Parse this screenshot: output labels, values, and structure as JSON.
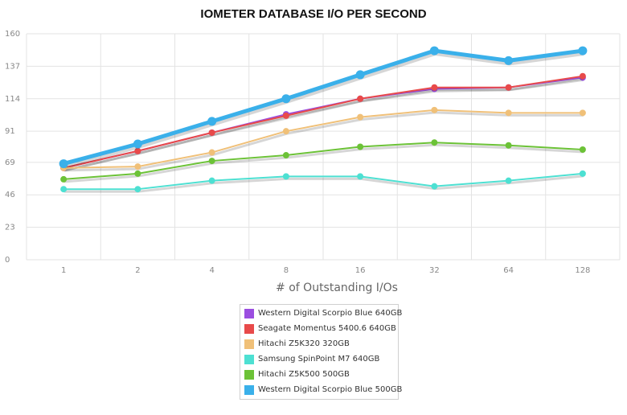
{
  "chart_data": {
    "type": "line",
    "title": "IOMETER DATABASE I/O PER SECOND",
    "xlabel": "# of Outstanding I/Os",
    "ylabel": "",
    "categories": [
      "1",
      "2",
      "4",
      "8",
      "16",
      "32",
      "64",
      "128"
    ],
    "y_ticks": [
      "0",
      "23",
      "46",
      "69",
      "91",
      "114",
      "137",
      "160"
    ],
    "ylim": [
      0,
      160
    ],
    "grid": true,
    "legend_position": "bottom",
    "series": [
      {
        "name": "Western Digital Scorpio Blue 640GB",
        "color": "#9b4ee0",
        "values": [
          65,
          77,
          90,
          103,
          114,
          121,
          122,
          129
        ]
      },
      {
        "name": "Seagate Momentus 5400.6 640GB",
        "color": "#e84a4a",
        "values": [
          65,
          77,
          90,
          102,
          114,
          122,
          122,
          130
        ]
      },
      {
        "name": "Hitachi Z5K320 320GB",
        "color": "#f0c078",
        "values": [
          65,
          66,
          76,
          91,
          101,
          106,
          104,
          104
        ]
      },
      {
        "name": "Samsung SpinPoint M7 640GB",
        "color": "#4de0d2",
        "values": [
          50,
          50,
          56,
          59,
          59,
          52,
          56,
          61
        ]
      },
      {
        "name": "Hitachi Z5K500 500GB",
        "color": "#6cc237",
        "values": [
          57,
          61,
          70,
          74,
          80,
          83,
          81,
          78
        ]
      },
      {
        "name": "Western Digital Scorpio Blue 500GB",
        "color": "#3ab0ea",
        "values": [
          68,
          82,
          98,
          114,
          131,
          148,
          141,
          148
        ]
      }
    ]
  }
}
